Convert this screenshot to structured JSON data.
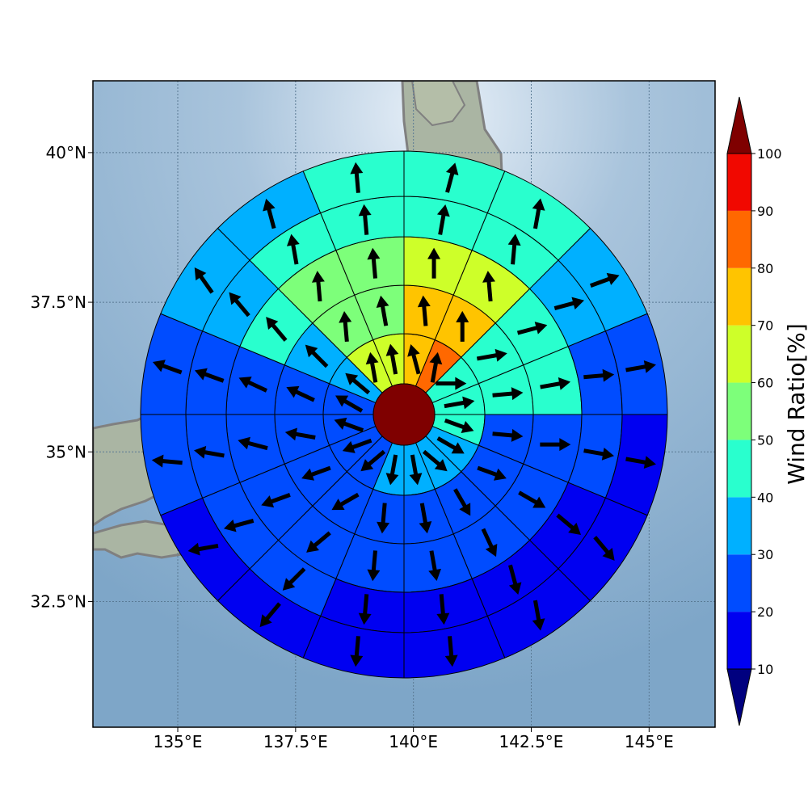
{
  "map": {
    "lon_range": [
      133.2,
      146.4
    ],
    "lat_range": [
      30.4,
      41.2
    ],
    "center": {
      "lon": 139.8,
      "lat": 35.7
    },
    "x_ticks": [
      {
        "lon": 135,
        "label": "135°E"
      },
      {
        "lon": 137.5,
        "label": "137.5°E"
      },
      {
        "lon": 140,
        "label": "140°E"
      },
      {
        "lon": 142.5,
        "label": "142.5°E"
      },
      {
        "lon": 145,
        "label": "145°E"
      }
    ],
    "y_ticks": [
      {
        "lat": 40,
        "label": "40°N"
      },
      {
        "lat": 37.5,
        "label": "37.5°N"
      },
      {
        "lat": 35,
        "label": "35°N"
      },
      {
        "lat": 32.5,
        "label": "32.5°N"
      }
    ],
    "background": {
      "sea": "#93b4d1",
      "land": "#a9b6a4",
      "coastline": "#808080"
    }
  },
  "chart_data": {
    "type": "heatmap",
    "description_free": true,
    "sector_count": 16,
    "ring_count": 5,
    "center_value": 100,
    "rings": [
      [
        70,
        80,
        40,
        40,
        40,
        30,
        30,
        30,
        30,
        20,
        20,
        20,
        20,
        30,
        60,
        60
      ],
      [
        70,
        70,
        40,
        40,
        20,
        20,
        20,
        20,
        20,
        20,
        20,
        20,
        20,
        30,
        50,
        50
      ],
      [
        60,
        60,
        40,
        40,
        20,
        20,
        20,
        20,
        20,
        20,
        20,
        20,
        20,
        40,
        50,
        50
      ],
      [
        40,
        40,
        30,
        20,
        20,
        10,
        10,
        10,
        10,
        20,
        20,
        20,
        20,
        30,
        40,
        40
      ],
      [
        40,
        40,
        30,
        20,
        10,
        10,
        10,
        10,
        10,
        10,
        10,
        20,
        20,
        30,
        30,
        40
      ]
    ],
    "arrow_angles_deg": [
      [
        105,
        80,
        0,
        10,
        -20,
        -30,
        -40,
        -80,
        -100,
        -140,
        -160,
        160,
        150,
        140,
        100,
        100
      ],
      [
        95,
        90,
        10,
        5,
        -5,
        -20,
        -60,
        -80,
        -95,
        -150,
        -160,
        170,
        155,
        135,
        95,
        100
      ],
      [
        90,
        95,
        15,
        10,
        0,
        -30,
        -65,
        -80,
        -95,
        -140,
        -160,
        165,
        155,
        130,
        95,
        95
      ],
      [
        80,
        85,
        15,
        5,
        -10,
        -40,
        -75,
        -85,
        -95,
        -135,
        -165,
        170,
        160,
        130,
        100,
        95
      ],
      [
        75,
        80,
        20,
        10,
        -10,
        -50,
        -80,
        -85,
        -95,
        -130,
        -170,
        175,
        160,
        125,
        105,
        95
      ]
    ],
    "colorbar": {
      "label": "Wind Ratio[%]",
      "ticks": [
        10,
        20,
        30,
        40,
        50,
        60,
        70,
        80,
        90,
        100
      ],
      "levels": [
        {
          "from": 0,
          "to": 10,
          "color": "#00007f"
        },
        {
          "from": 10,
          "to": 20,
          "color": "#0000f1"
        },
        {
          "from": 20,
          "to": 30,
          "color": "#004cff"
        },
        {
          "from": 30,
          "to": 40,
          "color": "#00b0ff"
        },
        {
          "from": 40,
          "to": 50,
          "color": "#29ffce"
        },
        {
          "from": 50,
          "to": 60,
          "color": "#7dff7a"
        },
        {
          "from": 60,
          "to": 70,
          "color": "#ceff29"
        },
        {
          "from": 70,
          "to": 80,
          "color": "#ffc400"
        },
        {
          "from": 80,
          "to": 90,
          "color": "#ff6800"
        },
        {
          "from": 90,
          "to": 100,
          "color": "#f10800"
        },
        {
          "from": 100,
          "to": 110,
          "color": "#7f0000"
        }
      ]
    }
  }
}
